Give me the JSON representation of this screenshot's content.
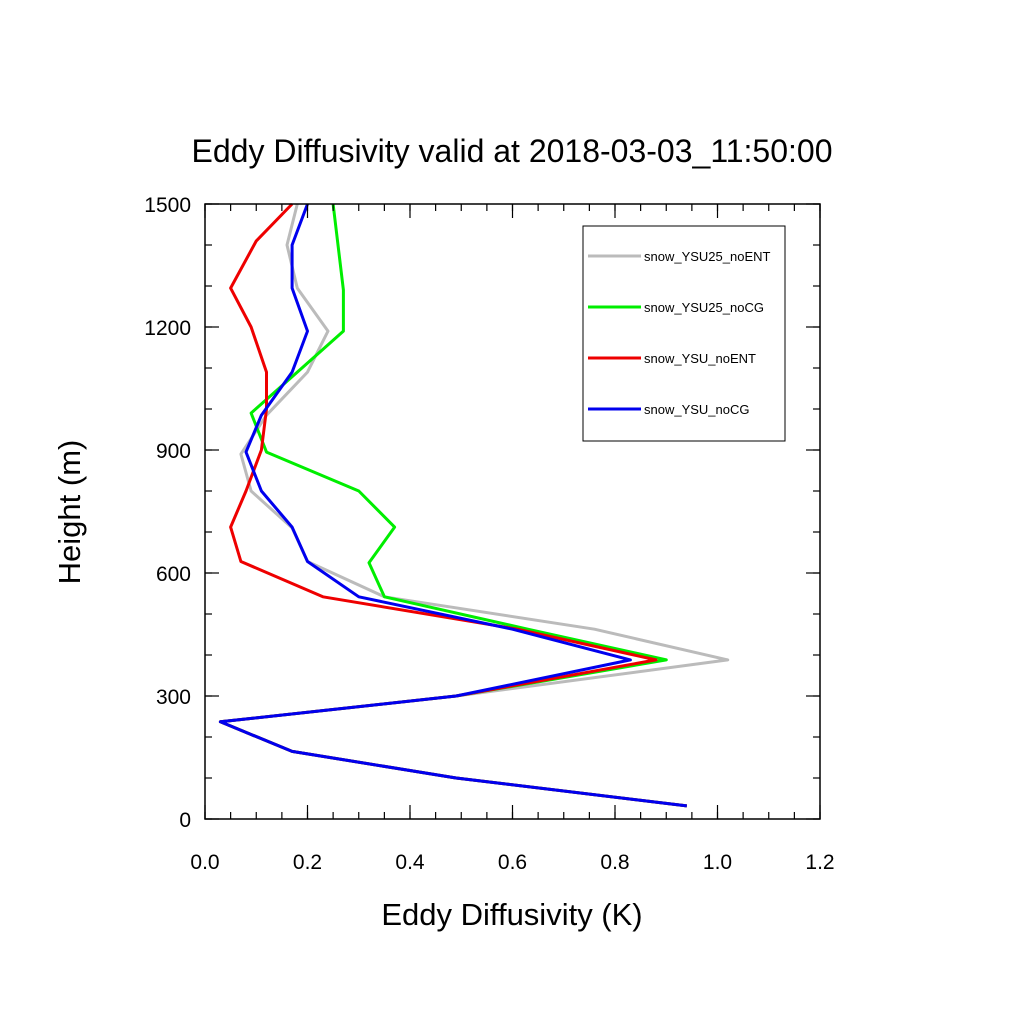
{
  "chart_data": {
    "type": "line",
    "title": "Eddy Diffusivity valid at 2018-03-03_11:50:00",
    "xlabel": "Eddy Diffusivity (K)",
    "ylabel": "Height (m)",
    "xlim": [
      0.0,
      1.2
    ],
    "ylim": [
      0,
      1500
    ],
    "xticks": [
      "0.0",
      "0.2",
      "0.4",
      "0.6",
      "0.8",
      "1.0",
      "1.2"
    ],
    "yticks": [
      "0",
      "300",
      "600",
      "900",
      "1200",
      "1500"
    ],
    "grid": false,
    "legend_position": "top-right",
    "series": [
      {
        "name": "snow_YSU25_noENT",
        "color": "#bbbbbb",
        "points": [
          [
            0.94,
            32
          ],
          [
            0.49,
            100
          ],
          [
            0.17,
            165
          ],
          [
            0.03,
            237
          ],
          [
            0.49,
            300
          ],
          [
            1.02,
            388
          ],
          [
            0.76,
            463
          ],
          [
            0.35,
            542
          ],
          [
            0.2,
            628
          ],
          [
            0.17,
            710
          ],
          [
            0.09,
            800
          ],
          [
            0.07,
            890
          ],
          [
            0.12,
            985
          ],
          [
            0.2,
            1090
          ],
          [
            0.24,
            1190
          ],
          [
            0.18,
            1295
          ],
          [
            0.16,
            1400
          ],
          [
            0.18,
            1500
          ]
        ]
      },
      {
        "name": "snow_YSU25_noCG",
        "color": "#00ee00",
        "points": [
          [
            0.94,
            32
          ],
          [
            0.49,
            100
          ],
          [
            0.17,
            165
          ],
          [
            0.03,
            237
          ],
          [
            0.49,
            300
          ],
          [
            0.9,
            388
          ],
          [
            0.63,
            463
          ],
          [
            0.35,
            542
          ],
          [
            0.32,
            625
          ],
          [
            0.37,
            712
          ],
          [
            0.3,
            800
          ],
          [
            0.12,
            895
          ],
          [
            0.09,
            990
          ],
          [
            0.18,
            1090
          ],
          [
            0.27,
            1190
          ],
          [
            0.27,
            1290
          ],
          [
            0.25,
            1500
          ]
        ]
      },
      {
        "name": "snow_YSU_noENT",
        "color": "#ee0000",
        "points": [
          [
            0.94,
            32
          ],
          [
            0.49,
            100
          ],
          [
            0.17,
            165
          ],
          [
            0.03,
            237
          ],
          [
            0.49,
            300
          ],
          [
            0.88,
            388
          ],
          [
            0.61,
            463
          ],
          [
            0.23,
            542
          ],
          [
            0.07,
            628
          ],
          [
            0.05,
            712
          ],
          [
            0.08,
            800
          ],
          [
            0.11,
            900
          ],
          [
            0.12,
            1000
          ],
          [
            0.12,
            1090
          ],
          [
            0.09,
            1200
          ],
          [
            0.05,
            1295
          ],
          [
            0.1,
            1410
          ],
          [
            0.17,
            1500
          ]
        ]
      },
      {
        "name": "snow_YSU_noCG",
        "color": "#0000ee",
        "points": [
          [
            0.94,
            32
          ],
          [
            0.49,
            100
          ],
          [
            0.17,
            165
          ],
          [
            0.03,
            237
          ],
          [
            0.49,
            300
          ],
          [
            0.83,
            388
          ],
          [
            0.6,
            463
          ],
          [
            0.3,
            542
          ],
          [
            0.2,
            628
          ],
          [
            0.17,
            712
          ],
          [
            0.11,
            800
          ],
          [
            0.08,
            895
          ],
          [
            0.11,
            985
          ],
          [
            0.17,
            1090
          ],
          [
            0.2,
            1190
          ],
          [
            0.17,
            1295
          ],
          [
            0.17,
            1400
          ],
          [
            0.2,
            1500
          ]
        ]
      }
    ]
  }
}
